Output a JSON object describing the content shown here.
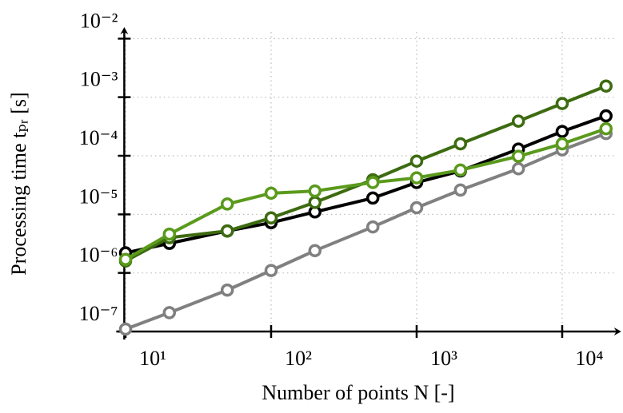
{
  "chart_data": {
    "type": "line",
    "x_label": "Number of points N [-]",
    "y_label": "Processing time tₚᵣ [s]",
    "x": [
      10,
      20,
      50,
      100,
      200,
      500,
      1000,
      2000,
      5000,
      10000,
      20000
    ],
    "xlog": true,
    "ylog": true,
    "grid": true,
    "xlim": [
      9.8,
      23000
    ],
    "ylim": [
      1e-07,
      0.013
    ],
    "xticks": [
      {
        "value": 10,
        "label": "10¹"
      },
      {
        "value": 100,
        "label": "10²"
      },
      {
        "value": 1000,
        "label": "10³"
      },
      {
        "value": 10000,
        "label": "10⁴"
      }
    ],
    "yticks": [
      {
        "value": 1e-07,
        "label": "10⁻⁷"
      },
      {
        "value": 1e-06,
        "label": "10⁻⁶"
      },
      {
        "value": 1e-05,
        "label": "10⁻⁵"
      },
      {
        "value": 0.0001,
        "label": "10⁻⁴"
      },
      {
        "value": 0.001,
        "label": "10⁻³"
      },
      {
        "value": 0.01,
        "label": "10⁻²"
      }
    ],
    "series": [
      {
        "color": "#808080",
        "values": [
          1.1e-07,
          2.1e-07,
          5.1e-07,
          1.1e-06,
          2.4e-06,
          6.1e-06,
          1.3e-05,
          2.6e-05,
          6e-05,
          0.000126,
          0.00024
        ]
      },
      {
        "color": "#000000",
        "values": [
          2.2e-06,
          3.2e-06,
          5.2e-06,
          7.2e-06,
          1.1e-05,
          1.9e-05,
          3.5e-05,
          5.5e-05,
          0.00013,
          0.00026,
          0.00048
        ]
      },
      {
        "color": "#3d6b10",
        "values": [
          1.6e-06,
          4e-06,
          5.2e-06,
          8.7e-06,
          1.6e-05,
          3.9e-05,
          8.1e-05,
          0.00016,
          0.00039,
          0.00078,
          0.00155
        ]
      },
      {
        "color": "#5a9a1c",
        "values": [
          1.7e-06,
          4.6e-06,
          1.5e-05,
          2.3e-05,
          2.5e-05,
          3.5e-05,
          4.2e-05,
          5.7e-05,
          9.8e-05,
          0.00016,
          0.00029
        ]
      }
    ]
  }
}
